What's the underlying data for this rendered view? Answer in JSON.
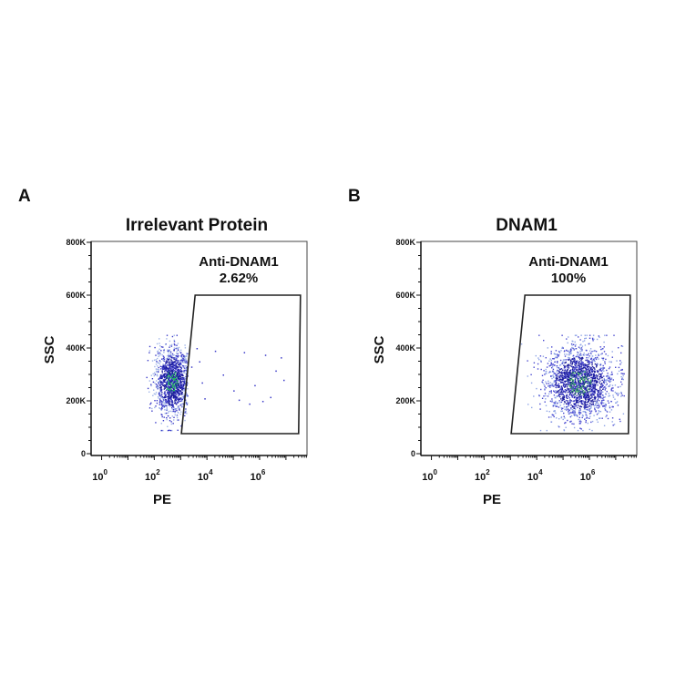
{
  "chart_data": [
    {
      "type": "scatter",
      "panel_label": "A",
      "title": "Irrelevant Protein",
      "xlabel": "PE",
      "ylabel": "SSC",
      "x_scale": "log",
      "xlim_log10": [
        -0.4,
        7.8
      ],
      "x_ticks": [
        {
          "base": "10",
          "exp": "0"
        },
        {
          "base": "10",
          "exp": "2"
        },
        {
          "base": "10",
          "exp": "4"
        },
        {
          "base": "10",
          "exp": "6"
        }
      ],
      "ylim": [
        0,
        800000
      ],
      "y_ticks": [
        {
          "value": 0,
          "label": "0"
        },
        {
          "value": 200000,
          "label": "200K"
        },
        {
          "value": 400000,
          "label": "400K"
        },
        {
          "value": 600000,
          "label": "600K"
        },
        {
          "value": 800000,
          "label": "800K"
        }
      ],
      "grid": false,
      "gate": {
        "name": "Anti-DNAM1",
        "percent": "2.62%",
        "vertices_pe_log10_ssc": [
          [
            3.55,
            600000
          ],
          [
            7.55,
            600000
          ],
          [
            7.48,
            76000
          ],
          [
            3.03,
            76000
          ]
        ]
      },
      "population": {
        "pe_log10_center": 2.65,
        "pe_log10_sd": 0.33,
        "pe_log10_max": 3.25,
        "ssc_center": 275000,
        "ssc_sd": 65000,
        "events": 1300
      },
      "gated_events_pe_log10_ssc": [
        [
          3.6,
          400000
        ],
        [
          3.4,
          330000
        ],
        [
          3.9,
          210000
        ],
        [
          4.3,
          390000
        ],
        [
          5.4,
          385000
        ],
        [
          5.8,
          260000
        ],
        [
          6.2,
          375000
        ],
        [
          6.8,
          365000
        ],
        [
          6.6,
          315000
        ],
        [
          5.2,
          205000
        ],
        [
          5.6,
          190000
        ],
        [
          6.1,
          200000
        ],
        [
          6.9,
          280000
        ],
        [
          4.6,
          300000
        ],
        [
          3.8,
          270000
        ],
        [
          5.0,
          240000
        ],
        [
          6.4,
          215000
        ],
        [
          3.7,
          350000
        ]
      ],
      "colors": {
        "low": "#3a3ac8",
        "mid": "#1a1a9a",
        "high": "#22c05a",
        "sparse": "#9fb4e8",
        "gate": "#222222"
      }
    },
    {
      "type": "scatter",
      "panel_label": "B",
      "title": "DNAM1",
      "xlabel": "PE",
      "ylabel": "SSC",
      "x_scale": "log",
      "xlim_log10": [
        -0.4,
        7.8
      ],
      "x_ticks": [
        {
          "base": "10",
          "exp": "0"
        },
        {
          "base": "10",
          "exp": "2"
        },
        {
          "base": "10",
          "exp": "4"
        },
        {
          "base": "10",
          "exp": "6"
        }
      ],
      "ylim": [
        0,
        800000
      ],
      "y_ticks": [
        {
          "value": 0,
          "label": "0"
        },
        {
          "value": 200000,
          "label": "200K"
        },
        {
          "value": 400000,
          "label": "400K"
        },
        {
          "value": 600000,
          "label": "600K"
        },
        {
          "value": 800000,
          "label": "800K"
        }
      ],
      "grid": false,
      "gate": {
        "name": "Anti-DNAM1",
        "percent": "100%",
        "vertices_pe_log10_ssc": [
          [
            3.55,
            600000
          ],
          [
            7.55,
            600000
          ],
          [
            7.48,
            76000
          ],
          [
            3.03,
            76000
          ]
        ]
      },
      "population": {
        "pe_log10_center": 5.6,
        "pe_log10_sd": 0.65,
        "pe_log10_max": 7.3,
        "ssc_center": 270000,
        "ssc_sd": 70000,
        "events": 1900
      },
      "gated_events_pe_log10_ssc": [],
      "colors": {
        "low": "#4848d0",
        "mid": "#1a1a9a",
        "high": "#3aa860",
        "sparse": "#8ea4e6",
        "gate": "#222222"
      }
    }
  ]
}
